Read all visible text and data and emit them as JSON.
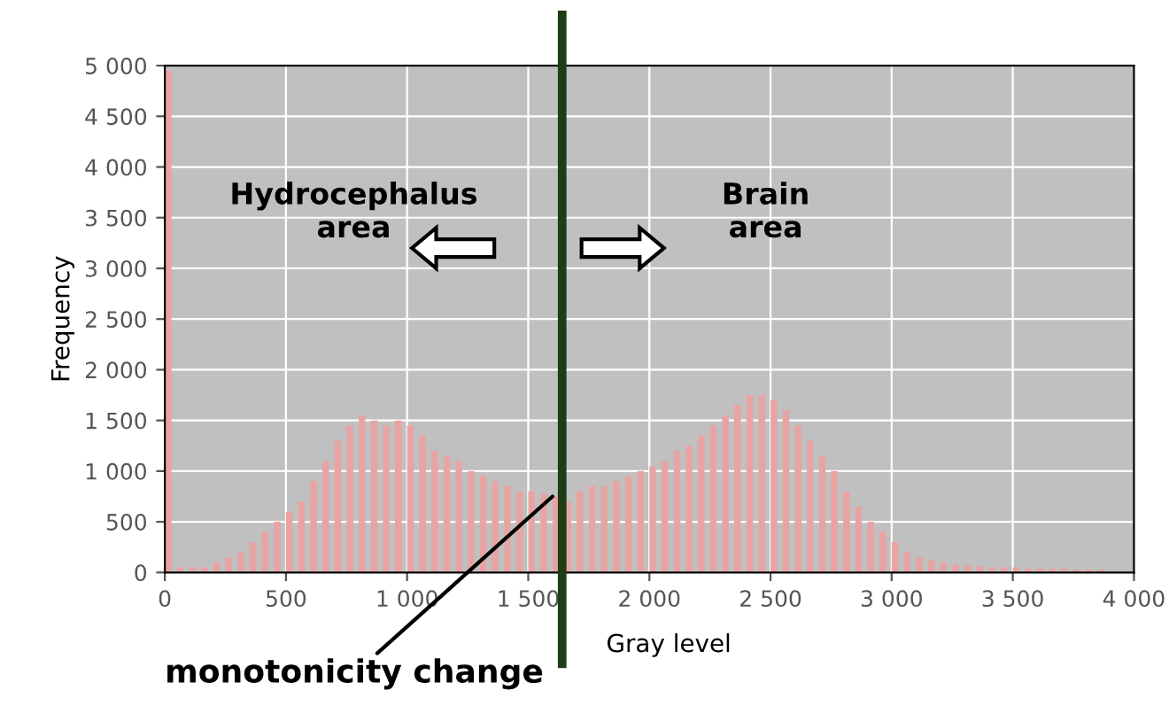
{
  "chart_data": {
    "type": "histogram",
    "xlabel": "Gray level",
    "ylabel": "Frequency",
    "bins": [
      0,
      50,
      100,
      150,
      200,
      250,
      300,
      350,
      400,
      450,
      500,
      550,
      600,
      650,
      700,
      750,
      800,
      850,
      900,
      950,
      1000,
      1050,
      1100,
      1150,
      1200,
      1250,
      1300,
      1350,
      1400,
      1450,
      1500,
      1550,
      1600,
      1650,
      1700,
      1750,
      1800,
      1850,
      1900,
      1950,
      2000,
      2050,
      2100,
      2150,
      2200,
      2250,
      2300,
      2350,
      2400,
      2450,
      2500,
      2550,
      2600,
      2650,
      2700,
      2750,
      2800,
      2850,
      2900,
      2950,
      3000,
      3050,
      3100,
      3150,
      3200,
      3250,
      3300,
      3350,
      3400,
      3450,
      3500,
      3550,
      3600,
      3650,
      3700,
      3750,
      3800,
      3850,
      3900,
      3950,
      4000
    ],
    "values": [
      4950,
      50,
      50,
      50,
      100,
      150,
      200,
      300,
      400,
      500,
      600,
      700,
      900,
      1100,
      1300,
      1450,
      1550,
      1500,
      1450,
      1500,
      1450,
      1350,
      1200,
      1150,
      1100,
      1000,
      950,
      900,
      850,
      800,
      800,
      780,
      750,
      700,
      800,
      850,
      850,
      900,
      950,
      1000,
      1050,
      1100,
      1200,
      1250,
      1350,
      1450,
      1550,
      1650,
      1750,
      1750,
      1700,
      1600,
      1450,
      1300,
      1150,
      1000,
      800,
      650,
      500,
      400,
      300,
      200,
      150,
      120,
      100,
      80,
      70,
      60,
      50,
      50,
      50,
      40,
      40,
      40,
      40,
      30,
      30,
      30,
      0,
      0
    ],
    "color": "#e8a4a4",
    "xlim": [
      0,
      4000
    ],
    "xticks": [
      0,
      500,
      {
        "value": 1000,
        "label": "1 000"
      },
      {
        "value": 1500,
        "label": "1 500"
      },
      {
        "value": 2000,
        "label": "2 000"
      },
      {
        "value": 2500,
        "label": "2 500"
      },
      {
        "value": 3000,
        "label": "3 000"
      },
      {
        "value": 3500,
        "label": "3 500"
      },
      {
        "value": 4000,
        "label": "4 000"
      }
    ],
    "ylim": [
      0,
      5000
    ],
    "yticks": [
      0,
      500,
      {
        "value": 1000,
        "label": "1 000"
      },
      {
        "value": 1500,
        "label": "1 500"
      },
      {
        "value": 2000,
        "label": "2 000"
      },
      {
        "value": 2500,
        "label": "2 500"
      },
      {
        "value": 3000,
        "label": "3 000"
      },
      {
        "value": 3500,
        "label": "3 500"
      },
      {
        "value": 4000,
        "label": "4 000"
      },
      {
        "value": 4500,
        "label": "4 500"
      },
      {
        "value": 5000,
        "label": "5 000"
      }
    ],
    "grid": true,
    "ref_lines": [
      {
        "axis": "x",
        "value": 1640,
        "label": null,
        "color": "#1e3d14"
      }
    ],
    "annotations": [
      "Hydrocephalus\narea",
      "Brain\narea",
      {
        "text": "monotonicity change",
        "x": 1600,
        "y": 750
      }
    ]
  }
}
